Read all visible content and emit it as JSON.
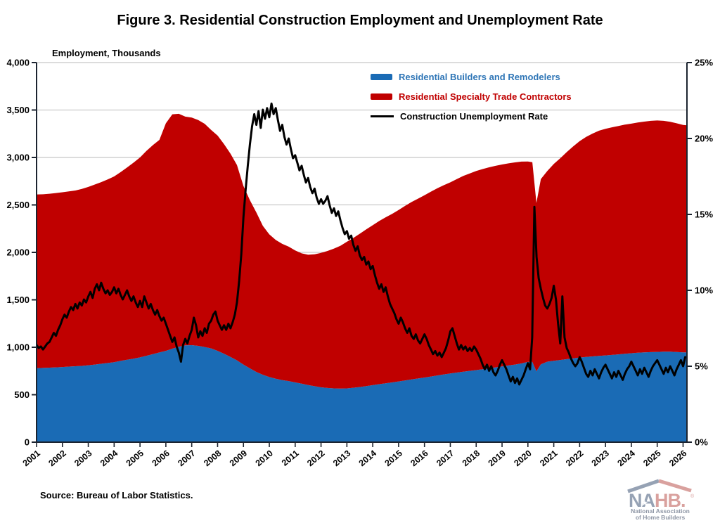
{
  "title": "Figure 3. Residential Construction Employment and Unemployment Rate",
  "source_note": "Source: Bureau of Labor Statistics.",
  "logo": {
    "part1": "NA",
    "part2": "HB.",
    "reg": "®",
    "star": "★",
    "caption1": "National Association",
    "caption2": "of Home Builders"
  },
  "colors": {
    "blue_area": "#1a6bb5",
    "red_area": "#c00000",
    "line": "#000000",
    "grid": "#bababa",
    "axis": "#1c2430",
    "legend_blue_text": "#2e75b6",
    "legend_red_text": "#c00000",
    "legend_black_text": "#000000"
  },
  "chart_data": {
    "type": "stacked_area_with_line",
    "title": "Figure 3. Residential Construction Employment and Unemployment Rate",
    "left_axis": {
      "label": "Employment, Thousands",
      "min": 0,
      "max": 4000,
      "tick_step": 500,
      "tick_labels": [
        "0",
        "500",
        "1,000",
        "1,500",
        "2,000",
        "2,500",
        "3,000",
        "3,500",
        "4,000"
      ]
    },
    "right_axis": {
      "min": 0,
      "max": 25,
      "tick_step": 5,
      "tick_labels": [
        "0%",
        "5%",
        "10%",
        "15%",
        "20%",
        "25%"
      ]
    },
    "x_axis": {
      "min": 2001,
      "max": 2026.15,
      "tick_years": [
        2001,
        2002,
        2003,
        2004,
        2005,
        2006,
        2007,
        2008,
        2009,
        2010,
        2011,
        2012,
        2013,
        2014,
        2015,
        2016,
        2017,
        2018,
        2019,
        2020,
        2021,
        2022,
        2023,
        2024,
        2025,
        2026
      ]
    },
    "grid": "horizontal",
    "legend_position": "top-center",
    "x_area": [
      2001,
      2001.25,
      2001.5,
      2001.75,
      2002,
      2002.25,
      2002.5,
      2002.75,
      2003,
      2003.25,
      2003.5,
      2003.75,
      2004,
      2004.25,
      2004.5,
      2004.75,
      2005,
      2005.25,
      2005.5,
      2005.75,
      2006,
      2006.25,
      2006.5,
      2006.75,
      2007,
      2007.25,
      2007.5,
      2007.75,
      2008,
      2008.25,
      2008.5,
      2008.75,
      2009,
      2009.25,
      2009.5,
      2009.75,
      2010,
      2010.25,
      2010.5,
      2010.75,
      2011,
      2011.25,
      2011.5,
      2011.75,
      2012,
      2012.25,
      2012.5,
      2012.75,
      2013,
      2013.25,
      2013.5,
      2013.75,
      2014,
      2014.25,
      2014.5,
      2014.75,
      2015,
      2015.25,
      2015.5,
      2015.75,
      2016,
      2016.25,
      2016.5,
      2016.75,
      2017,
      2017.25,
      2017.5,
      2017.75,
      2018,
      2018.25,
      2018.5,
      2018.75,
      2019,
      2019.25,
      2019.5,
      2019.75,
      2020,
      2020.17,
      2020.33,
      2020.5,
      2020.75,
      2021,
      2021.25,
      2021.5,
      2021.75,
      2022,
      2022.25,
      2022.5,
      2022.75,
      2023,
      2023.25,
      2023.5,
      2023.75,
      2024,
      2024.25,
      2024.5,
      2024.75,
      2025,
      2025.25,
      2025.5,
      2025.75,
      2026,
      2026.25
    ],
    "series": [
      {
        "name": "Residential Builders and Remodelers",
        "type": "area",
        "axis": "left",
        "color": "#1a6bb5",
        "label_color": "#2e75b6",
        "values": [
          780,
          782,
          785,
          788,
          792,
          796,
          800,
          804,
          810,
          818,
          826,
          834,
          843,
          856,
          868,
          880,
          893,
          910,
          928,
          945,
          962,
          985,
          1005,
          1020,
          1022,
          1015,
          1003,
          988,
          962,
          932,
          898,
          862,
          818,
          778,
          740,
          710,
          686,
          668,
          654,
          644,
          630,
          616,
          602,
          590,
          578,
          571,
          567,
          565,
          567,
          573,
          581,
          591,
          601,
          611,
          621,
          630,
          640,
          650,
          661,
          671,
          681,
          692,
          703,
          714,
          724,
          733,
          742,
          751,
          759,
          768,
          778,
          788,
          798,
          808,
          818,
          830,
          846,
          845,
          746,
          820,
          848,
          858,
          866,
          875,
          884,
          892,
          898,
          904,
          909,
          914,
          919,
          925,
          931,
          937,
          942,
          946,
          949,
          951,
          954,
          953,
          950,
          947,
          946
        ]
      },
      {
        "name": "Residential Specialty Trade Contractors",
        "type": "area",
        "axis": "left",
        "stacked_on": "Residential Builders and Remodelers",
        "color": "#c00000",
        "label_color": "#c00000",
        "values": [
          1830,
          1830,
          1833,
          1837,
          1841,
          1846,
          1852,
          1864,
          1880,
          1897,
          1914,
          1934,
          1957,
          1989,
          2027,
          2065,
          2107,
          2160,
          2202,
          2240,
          2398,
          2470,
          2455,
          2410,
          2398,
          2380,
          2352,
          2302,
          2268,
          2208,
          2142,
          2058,
          1882,
          1772,
          1680,
          1570,
          1504,
          1462,
          1436,
          1416,
          1390,
          1374,
          1373,
          1390,
          1417,
          1444,
          1473,
          1505,
          1545,
          1579,
          1615,
          1651,
          1685,
          1719,
          1749,
          1776,
          1806,
          1840,
          1869,
          1895,
          1921,
          1948,
          1973,
          1994,
          2014,
          2039,
          2064,
          2081,
          2099,
          2110,
          2118,
          2124,
          2128,
          2130,
          2130,
          2126,
          2112,
          2105,
          1774,
          1952,
          2010,
          2074,
          2126,
          2181,
          2232,
          2280,
          2318,
          2348,
          2373,
          2388,
          2399,
          2407,
          2415,
          2419,
          2426,
          2432,
          2437,
          2439,
          2432,
          2423,
          2410,
          2395,
          2390
        ]
      },
      {
        "name": "Construction Unemployment Rate",
        "type": "line",
        "axis": "right",
        "color": "#000000",
        "label_color": "#000000",
        "x_start": 2001,
        "x_step": 0.0833333,
        "values": [
          6.4,
          6.2,
          6.3,
          6.1,
          6.3,
          6.5,
          6.6,
          6.9,
          7.2,
          7.0,
          7.4,
          7.7,
          8.1,
          8.4,
          8.2,
          8.6,
          8.9,
          8.7,
          9.1,
          8.8,
          9.2,
          9.0,
          9.4,
          9.2,
          9.6,
          9.9,
          9.5,
          10.1,
          10.4,
          10.0,
          10.5,
          10.1,
          9.8,
          10.0,
          9.7,
          9.9,
          10.2,
          9.8,
          10.1,
          9.7,
          9.4,
          9.7,
          10.0,
          9.6,
          9.3,
          9.6,
          9.2,
          8.9,
          9.3,
          8.9,
          9.6,
          9.2,
          8.8,
          9.1,
          8.7,
          8.4,
          8.7,
          8.3,
          8.0,
          8.2,
          7.8,
          7.4,
          7.0,
          6.6,
          6.9,
          6.3,
          5.9,
          5.3,
          6.4,
          6.8,
          6.5,
          7.0,
          7.4,
          8.2,
          7.7,
          6.9,
          7.3,
          7.0,
          7.5,
          7.2,
          7.8,
          8.0,
          8.4,
          8.6,
          8.0,
          7.7,
          7.4,
          7.7,
          7.4,
          7.8,
          7.5,
          7.9,
          8.4,
          9.2,
          10.6,
          12.4,
          14.8,
          16.6,
          18.2,
          19.6,
          20.8,
          21.6,
          20.9,
          21.8,
          20.7,
          21.9,
          21.3,
          22.0,
          21.4,
          22.3,
          21.6,
          22.0,
          21.2,
          20.5,
          20.9,
          20.1,
          19.6,
          20.0,
          19.3,
          18.7,
          18.9,
          18.4,
          17.9,
          18.2,
          17.6,
          17.1,
          17.4,
          16.8,
          16.4,
          16.7,
          16.1,
          15.7,
          16.0,
          15.7,
          15.9,
          16.2,
          15.6,
          15.1,
          15.4,
          14.9,
          15.2,
          14.6,
          14.1,
          13.7,
          13.9,
          13.4,
          13.6,
          13.0,
          12.6,
          12.9,
          12.3,
          12.0,
          12.2,
          11.7,
          11.9,
          11.4,
          11.6,
          11.0,
          10.5,
          10.1,
          10.4,
          9.9,
          10.2,
          9.6,
          9.1,
          8.8,
          8.5,
          8.1,
          7.8,
          8.2,
          7.9,
          7.5,
          7.2,
          7.5,
          7.0,
          6.8,
          7.1,
          6.7,
          6.5,
          6.8,
          7.1,
          6.8,
          6.4,
          6.1,
          5.8,
          6.0,
          5.7,
          5.9,
          5.6,
          5.9,
          6.2,
          6.7,
          7.3,
          7.5,
          7.0,
          6.5,
          6.1,
          6.4,
          6.1,
          6.3,
          6.0,
          6.2,
          6.0,
          6.3,
          6.1,
          5.8,
          5.5,
          5.1,
          4.8,
          5.1,
          4.7,
          5.0,
          4.6,
          4.4,
          4.7,
          5.1,
          5.4,
          5.1,
          4.8,
          4.4,
          4.0,
          4.3,
          3.9,
          4.2,
          3.8,
          4.1,
          4.4,
          4.8,
          5.2,
          4.8,
          6.9,
          15.5,
          12.2,
          10.8,
          10.1,
          9.5,
          9.0,
          8.8,
          9.1,
          9.5,
          10.3,
          9.4,
          7.8,
          6.5,
          9.6,
          6.9,
          6.2,
          5.9,
          5.5,
          5.2,
          5.0,
          5.2,
          5.6,
          5.3,
          4.9,
          4.5,
          4.3,
          4.7,
          4.4,
          4.8,
          4.5,
          4.2,
          4.6,
          4.9,
          5.1,
          4.8,
          4.5,
          4.2,
          4.6,
          4.3,
          4.7,
          4.4,
          4.1,
          4.5,
          4.8,
          5.0,
          5.3,
          5.0,
          4.7,
          4.4,
          4.8,
          4.5,
          4.9,
          4.6,
          4.3,
          4.7,
          5.0,
          5.2,
          5.4,
          5.1,
          4.8,
          4.5,
          4.9,
          4.6,
          5.0,
          4.7,
          4.4,
          4.8,
          5.1,
          5.4,
          5.0,
          5.6
        ]
      }
    ]
  }
}
